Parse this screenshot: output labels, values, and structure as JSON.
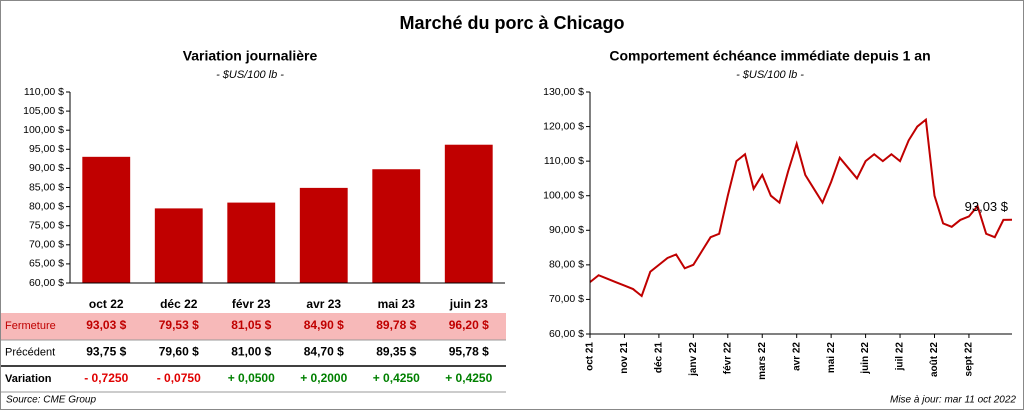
{
  "title": "Marché du porc à Chicago",
  "chart_data": [
    {
      "type": "bar",
      "title": "Variation journalière",
      "subtitle": "- $US/100 lb -",
      "categories": [
        "oct 22",
        "déc 22",
        "févr 23",
        "avr 23",
        "mai 23",
        "juin 23"
      ],
      "values": [
        93.03,
        79.53,
        81.05,
        84.9,
        89.78,
        96.2
      ],
      "color": "#c00000",
      "ylim": [
        60,
        110
      ],
      "yticks": [
        {
          "value": 60,
          "label": "60,00 $"
        },
        {
          "value": 65,
          "label": "65,00 $"
        },
        {
          "value": 70,
          "label": "70,00 $"
        },
        {
          "value": 75,
          "label": "75,00 $"
        },
        {
          "value": 80,
          "label": "80,00 $"
        },
        {
          "value": 85,
          "label": "85,00 $"
        },
        {
          "value": 90,
          "label": "90,00 $"
        },
        {
          "value": 95,
          "label": "95,00 $"
        },
        {
          "value": 100,
          "label": "100,00 $"
        },
        {
          "value": 105,
          "label": "105,00 $"
        },
        {
          "value": 110,
          "label": "110,00 $"
        }
      ]
    },
    {
      "type": "line",
      "title": "Comportement échéance immédiate depuis 1 an",
      "subtitle": "- $US/100 lb -",
      "categories": [
        "oct 21",
        null,
        null,
        null,
        "nov 21",
        null,
        null,
        null,
        "déc 21",
        null,
        null,
        null,
        "janv 22",
        null,
        null,
        null,
        "févr 22",
        null,
        null,
        null,
        "mars 22",
        null,
        null,
        null,
        "avr 22",
        null,
        null,
        null,
        "mai 22",
        null,
        null,
        null,
        "juin 22",
        null,
        null,
        null,
        "juil 22",
        null,
        null,
        null,
        "août 22",
        null,
        null,
        null,
        "sept 22",
        null,
        null,
        null,
        null,
        null
      ],
      "series": [
        {
          "name": "Échéance immédiate",
          "color": "#c00000",
          "values": [
            75,
            77,
            76,
            75,
            74,
            73,
            71,
            78,
            80,
            82,
            83,
            79,
            80,
            84,
            88,
            89,
            100,
            110,
            112,
            102,
            106,
            100,
            98,
            107,
            115,
            106,
            102,
            98,
            104,
            111,
            108,
            105,
            110,
            112,
            110,
            112,
            110,
            116,
            120,
            122,
            100,
            92,
            91,
            93,
            94,
            97,
            89,
            88,
            93,
            93.03
          ]
        }
      ],
      "annotation": "93,03 $",
      "ylim": [
        60,
        130
      ],
      "yticks": [
        {
          "value": 60,
          "label": "60,00 $"
        },
        {
          "value": 70,
          "label": "70,00 $"
        },
        {
          "value": 80,
          "label": "80,00 $"
        },
        {
          "value": 90,
          "label": "90,00 $"
        },
        {
          "value": 100,
          "label": "100,00 $"
        },
        {
          "value": 110,
          "label": "110,00 $"
        },
        {
          "value": 120,
          "label": "120,00 $"
        },
        {
          "value": 130,
          "label": "130,00 $"
        }
      ]
    }
  ],
  "table": {
    "rows": [
      {
        "label": "Fermeture",
        "cells": [
          "93,03 $",
          "79,53 $",
          "81,05 $",
          "84,90 $",
          "89,78 $",
          "96,20 $"
        ]
      },
      {
        "label": "Précédent",
        "cells": [
          "93,75 $",
          "79,60 $",
          "81,00 $",
          "84,70 $",
          "89,35 $",
          "95,78 $"
        ]
      },
      {
        "label": "Variation",
        "cells": [
          "- 0,7250",
          "- 0,0750",
          "+ 0,0500",
          "+ 0,2000",
          "+ 0,4250",
          "+ 0,4250"
        ]
      }
    ]
  },
  "source": "Source: CME Group",
  "updated": "Mise à jour: mar 11 oct 2022"
}
